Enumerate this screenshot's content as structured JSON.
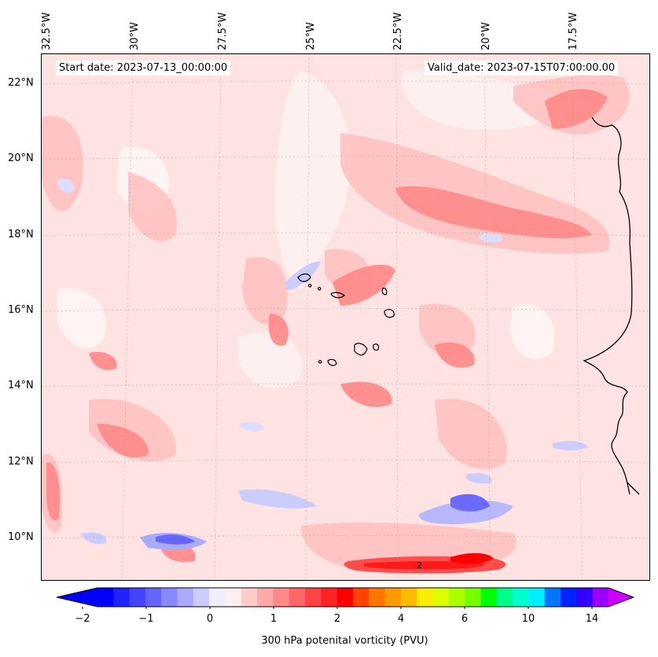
{
  "header": {
    "start_date": "Start date: 2023-07-13_00:00:00",
    "valid_date": "Valid_date: 2023-07-15T07:00:00.00"
  },
  "axes": {
    "longitude_labels": [
      "32.5°W",
      "30°W",
      "27.5°W",
      "25°W",
      "22.5°W",
      "20°W",
      "17.5°W"
    ],
    "latitude_labels": [
      "22°N",
      "20°N",
      "18°N",
      "16°N",
      "14°N",
      "12°N",
      "10°N"
    ]
  },
  "colorbar": {
    "label": "300 hPa potenital vorticity (PVU)",
    "tick_labels": [
      "−2",
      "−1",
      "0",
      "1",
      "2",
      "4",
      "6",
      "10",
      "14"
    ],
    "colors": [
      "#0000ff",
      "#2222ff",
      "#4444ff",
      "#6666ff",
      "#8888ff",
      "#aaaaff",
      "#ccccff",
      "#eeeeff",
      "#ffeeee",
      "#ffcccc",
      "#ffaaaa",
      "#ff8888",
      "#ff6666",
      "#ff4444",
      "#ff2222",
      "#ff0000",
      "#ff4400",
      "#ff7700",
      "#ff9900",
      "#ffbb00",
      "#ffee00",
      "#ddff00",
      "#aaff00",
      "#77ff00",
      "#00ff00",
      "#00ff88",
      "#00ffcc",
      "#00eeff",
      "#0077ff",
      "#0022ff",
      "#3300ff",
      "#9900ff"
    ],
    "extend_min_color": "#0000ff",
    "extend_max_color": "#cc00ff"
  },
  "map": {
    "field": "300 hPa potential vorticity",
    "background_color": "#ffe4e4",
    "coastline_color": "#000000",
    "gridline_style": "dotted grey",
    "max_annotation": "2"
  }
}
